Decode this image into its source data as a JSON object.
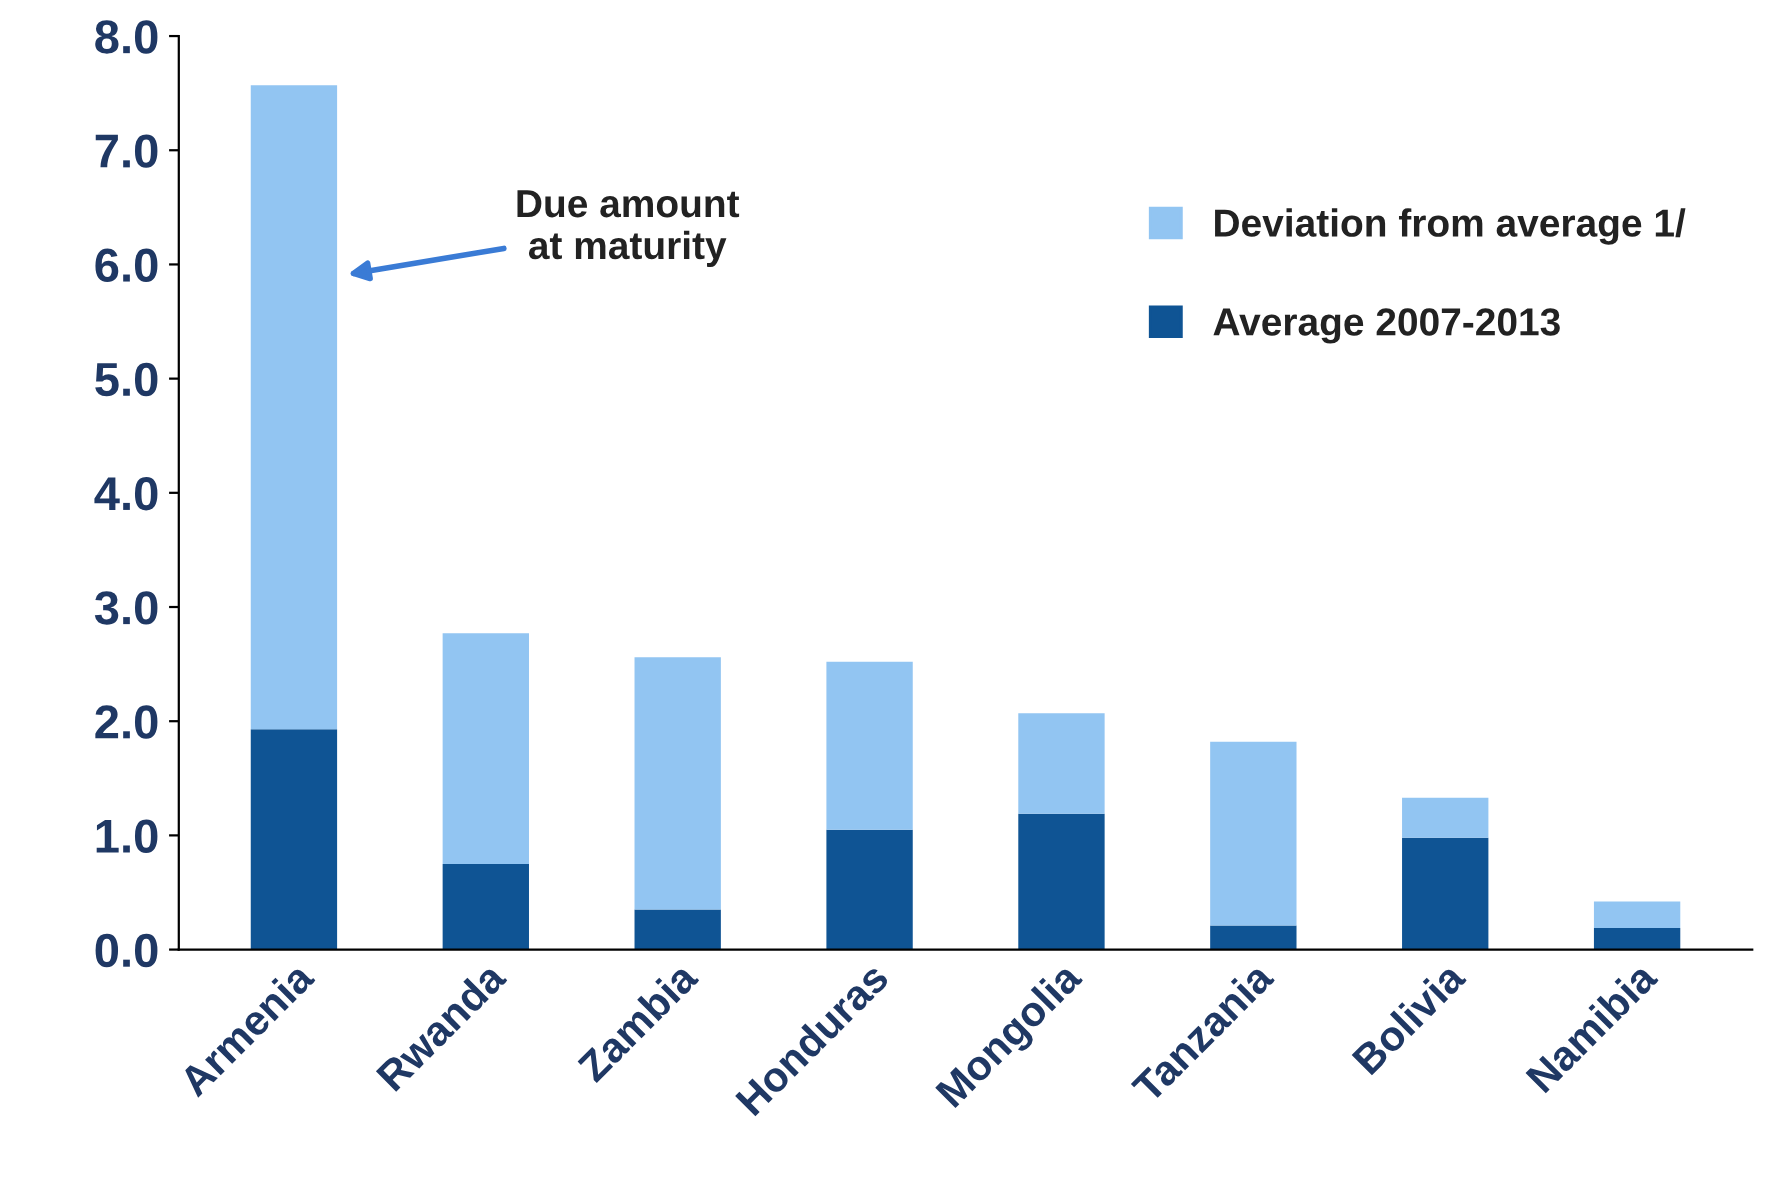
{
  "chart_data": {
    "type": "bar",
    "stacked": true,
    "categories": [
      "Armenia",
      "Rwanda",
      "Zambia",
      "Honduras",
      "Mongolia",
      "Tanzania",
      "Bolivia",
      "Namibia"
    ],
    "series": [
      {
        "name": "Average 2007-2013",
        "color": "#0f5494",
        "values": [
          1.93,
          0.75,
          0.35,
          1.05,
          1.19,
          0.21,
          0.98,
          0.19
        ]
      },
      {
        "name": "Deviation from average 1/",
        "color": "#92c5f2",
        "values": [
          5.64,
          2.02,
          2.21,
          1.47,
          0.88,
          1.61,
          0.35,
          0.23
        ]
      }
    ],
    "ylim": [
      0,
      8
    ],
    "yticks": [
      {
        "value": 0,
        "label": "0.0"
      },
      {
        "value": 1,
        "label": "1.0"
      },
      {
        "value": 2,
        "label": "2.0"
      },
      {
        "value": 3,
        "label": "3.0"
      },
      {
        "value": 4,
        "label": "4.0"
      },
      {
        "value": 5,
        "label": "5.0"
      },
      {
        "value": 6,
        "label": "6.0"
      },
      {
        "value": 7,
        "label": "7.0"
      },
      {
        "value": 8,
        "label": "8.0"
      }
    ],
    "grid": false,
    "legend": "top right",
    "annotations": [
      "Due amount\nat maturity"
    ]
  }
}
